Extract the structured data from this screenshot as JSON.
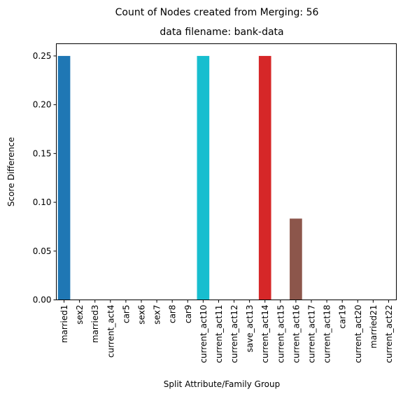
{
  "chart_data": {
    "type": "bar",
    "suptitle": "Count of Nodes created from Merging: 56",
    "title": "data filename: bank-data",
    "xlabel": "Split Attribute/Family Group",
    "ylabel": "Score Difference",
    "ylim": [
      0,
      0.2625
    ],
    "yticks": [
      "0.00",
      "0.05",
      "0.10",
      "0.15",
      "0.20",
      "0.25"
    ],
    "grid": false,
    "categories": [
      "married1",
      "sex2",
      "married3",
      "current_act4",
      "car5",
      "sex6",
      "sex7",
      "car8",
      "car9",
      "current_act10",
      "current_act11",
      "current_act12",
      "save_act13",
      "current_act14",
      "current_act15",
      "current_act16",
      "current_act17",
      "current_act18",
      "car19",
      "current_act20",
      "married21",
      "current_act22"
    ],
    "values": [
      0.25,
      0,
      0,
      0,
      0,
      0,
      0,
      0,
      0,
      0.25,
      0,
      0,
      0,
      0.25,
      0,
      0.0833,
      0,
      0,
      0,
      0,
      0,
      0
    ],
    "colors": [
      "#1f77b4",
      "#1f77b4",
      "#1f77b4",
      "#1f77b4",
      "#1f77b4",
      "#1f77b4",
      "#1f77b4",
      "#1f77b4",
      "#1f77b4",
      "#17becf",
      "#17becf",
      "#17becf",
      "#17becf",
      "#d62728",
      "#d62728",
      "#8c564b",
      "#8c564b",
      "#8c564b",
      "#8c564b",
      "#8c564b",
      "#8c564b",
      "#8c564b"
    ]
  }
}
